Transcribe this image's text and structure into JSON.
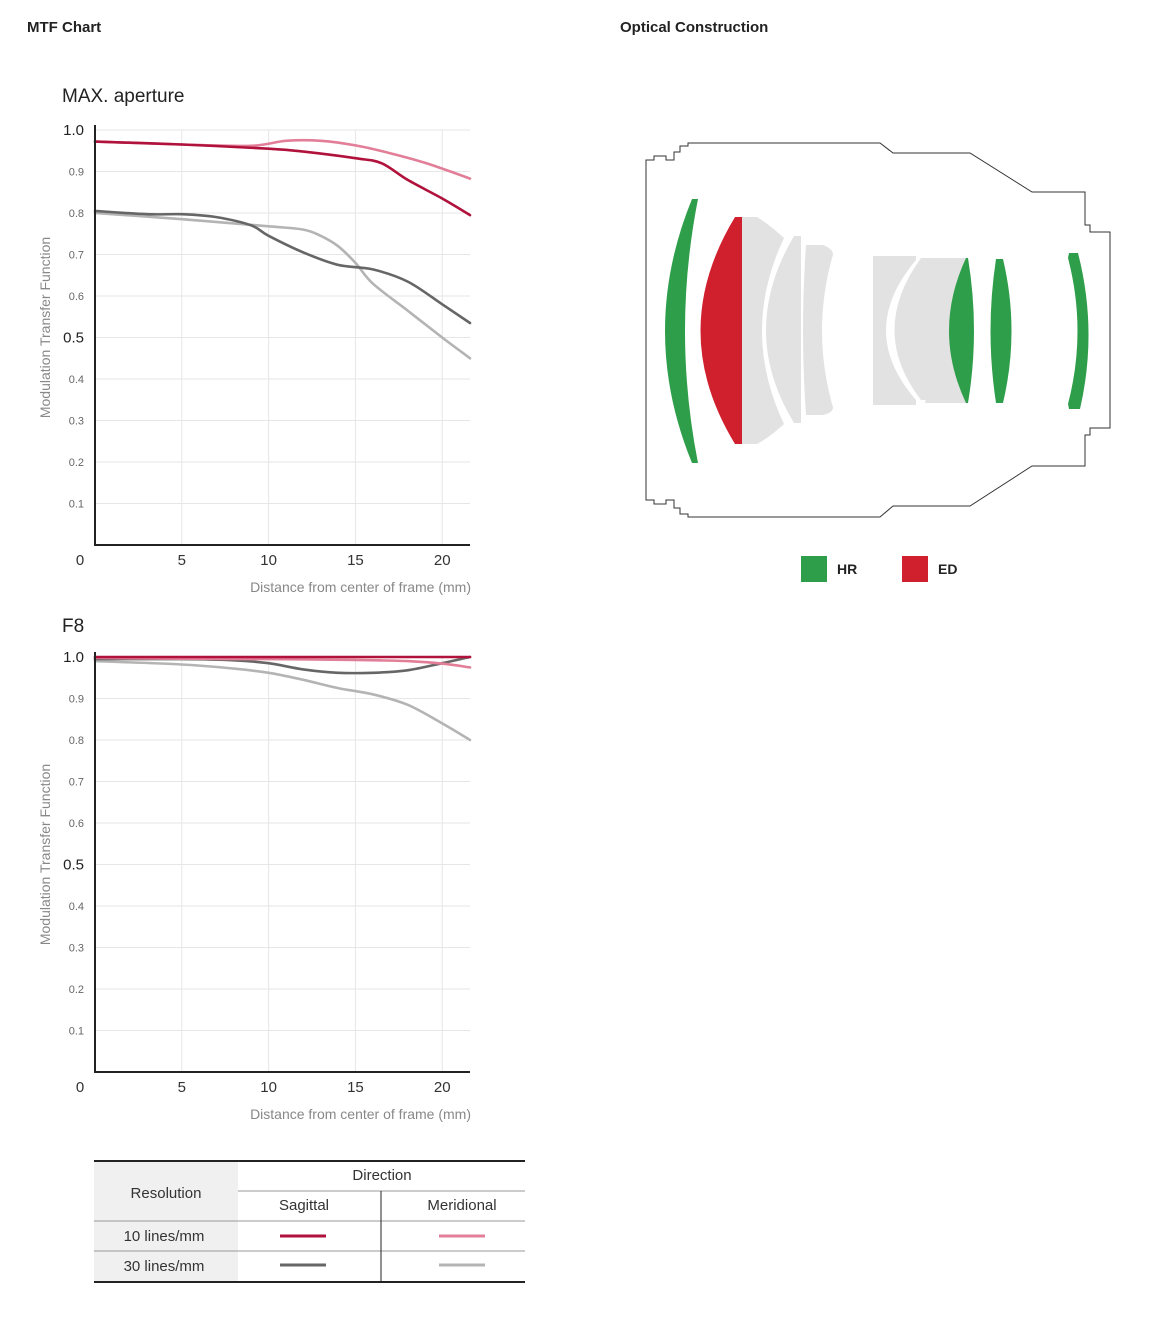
{
  "headers": {
    "mtf": "MTF Chart",
    "optical": "Optical Construction"
  },
  "colors": {
    "sagittal_10": "#b0123c",
    "meridional_10": "#e27e98",
    "sagittal_30": "#666666",
    "meridional_30": "#b4b4b4",
    "hr": "#2f9e4a",
    "ed": "#d0202e",
    "lens_gray": "#e2e2e2"
  },
  "chart_data": [
    {
      "type": "line",
      "title": "MAX. aperture",
      "xlabel": "Distance from center of frame (mm)",
      "ylabel": "Modulation Transfer Function",
      "xlim": [
        0,
        21.6
      ],
      "ylim": [
        0,
        1.0
      ],
      "x_ticks": [
        0,
        5,
        10,
        15,
        20
      ],
      "y_ticks": [
        0.1,
        0.2,
        0.3,
        0.4,
        0.5,
        0.6,
        0.7,
        0.8,
        0.9,
        1.0
      ],
      "y_tick_labels": [
        "0.1",
        "0.2",
        "0.3",
        "0.4",
        "0.5",
        "0.6",
        "0.7",
        "0.8",
        "0.9",
        "1.0"
      ],
      "grid": true,
      "series": [
        {
          "key": "sagittal_10",
          "x": [
            0,
            5,
            10,
            12,
            15,
            16.5,
            18,
            20,
            21.6
          ],
          "y": [
            0.972,
            0.965,
            0.955,
            0.948,
            0.932,
            0.92,
            0.88,
            0.835,
            0.795
          ]
        },
        {
          "key": "meridional_10",
          "x": [
            0,
            5,
            9,
            11,
            13,
            15,
            17,
            19,
            21.6
          ],
          "y": [
            0.972,
            0.965,
            0.962,
            0.974,
            0.974,
            0.963,
            0.944,
            0.921,
            0.883
          ]
        },
        {
          "key": "sagittal_30",
          "x": [
            0,
            3,
            5,
            7,
            9,
            10,
            12,
            14,
            16,
            18,
            20,
            21.6
          ],
          "y": [
            0.805,
            0.797,
            0.797,
            0.79,
            0.77,
            0.745,
            0.705,
            0.675,
            0.664,
            0.635,
            0.58,
            0.535
          ]
        },
        {
          "key": "meridional_30",
          "x": [
            0,
            5,
            10,
            12,
            13,
            14,
            15,
            16,
            18,
            20,
            21.6
          ],
          "y": [
            0.8,
            0.785,
            0.768,
            0.76,
            0.745,
            0.72,
            0.68,
            0.63,
            0.565,
            0.5,
            0.45
          ]
        }
      ]
    },
    {
      "type": "line",
      "title": "F8",
      "xlabel": "Distance from center of frame (mm)",
      "ylabel": "Modulation Transfer Function",
      "xlim": [
        0,
        21.6
      ],
      "ylim": [
        0,
        1.0
      ],
      "x_ticks": [
        0,
        5,
        10,
        15,
        20
      ],
      "y_ticks": [
        0.1,
        0.2,
        0.3,
        0.4,
        0.5,
        0.6,
        0.7,
        0.8,
        0.9,
        1.0
      ],
      "y_tick_labels": [
        "0.1",
        "0.2",
        "0.3",
        "0.4",
        "0.5",
        "0.6",
        "0.7",
        "0.8",
        "0.9",
        "1.0"
      ],
      "grid": true,
      "series": [
        {
          "key": "sagittal_10",
          "x": [
            0,
            5,
            10,
            15,
            20,
            21.6
          ],
          "y": [
            1.0,
            1.0,
            1.0,
            1.0,
            1.0,
            1.0
          ]
        },
        {
          "key": "meridional_10",
          "x": [
            0,
            5,
            10,
            15,
            18,
            20,
            21.6
          ],
          "y": [
            0.998,
            0.996,
            0.995,
            0.993,
            0.99,
            0.984,
            0.975
          ]
        },
        {
          "key": "sagittal_30",
          "x": [
            0,
            5,
            8,
            10,
            12,
            14,
            16,
            18,
            20,
            21.6
          ],
          "y": [
            0.995,
            0.995,
            0.992,
            0.985,
            0.97,
            0.962,
            0.962,
            0.968,
            0.985,
            1.0
          ]
        },
        {
          "key": "meridional_30",
          "x": [
            0,
            5,
            8,
            10,
            12,
            14,
            16,
            18,
            20,
            21.6
          ],
          "y": [
            0.99,
            0.982,
            0.972,
            0.962,
            0.945,
            0.925,
            0.91,
            0.885,
            0.84,
            0.8
          ]
        }
      ]
    }
  ],
  "legend_table": {
    "resolution_header": "Resolution",
    "direction_header": "Direction",
    "sagittal": "Sagittal",
    "meridional": "Meridional",
    "rows": [
      {
        "label": "10 lines/mm",
        "sagittal_key": "sagittal_10",
        "meridional_key": "meridional_10"
      },
      {
        "label": "30 lines/mm",
        "sagittal_key": "sagittal_30",
        "meridional_key": "meridional_30"
      }
    ]
  },
  "optical_legend": [
    {
      "label": "HR",
      "color": "#2f9e4a"
    },
    {
      "label": "ED",
      "color": "#d0202e"
    }
  ]
}
